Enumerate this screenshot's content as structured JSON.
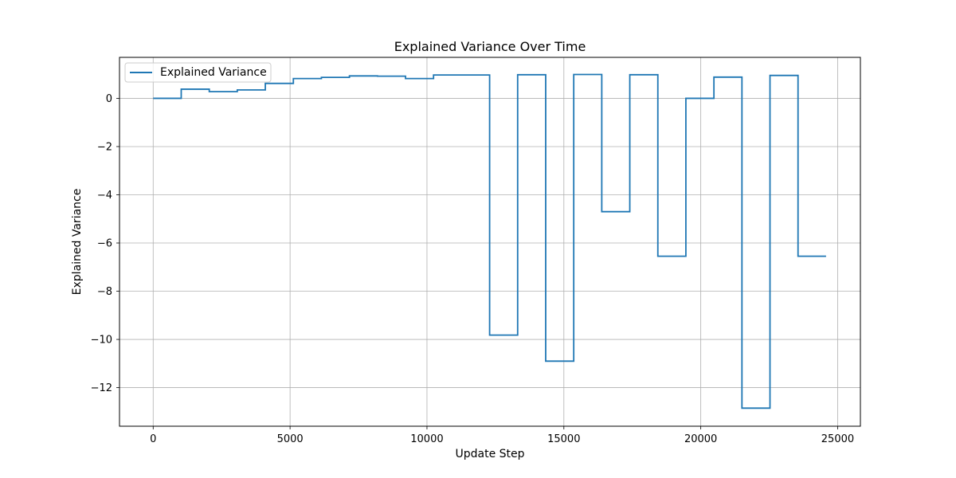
{
  "chart_data": {
    "type": "line",
    "title": "Explained Variance Over Time",
    "xlabel": "Update Step",
    "ylabel": "Explained Variance",
    "xlim": [
      -1230,
      25830
    ],
    "ylim": [
      -13.6,
      1.7
    ],
    "xticks": [
      0,
      5000,
      10000,
      15000,
      20000,
      25000
    ],
    "xtick_labels": [
      "0",
      "5000",
      "10000",
      "15000",
      "20000",
      "25000"
    ],
    "yticks": [
      0,
      -2,
      -4,
      -6,
      -8,
      -10,
      -12
    ],
    "ytick_labels": [
      "0",
      "−2",
      "−4",
      "−6",
      "−8",
      "−10",
      "−12"
    ],
    "grid": true,
    "legend_position": "top-left",
    "step_style": "post",
    "series": [
      {
        "name": "Explained Variance",
        "color": "#1f77b4",
        "x": [
          0,
          1024,
          2048,
          3072,
          4096,
          5120,
          6144,
          7168,
          8192,
          9216,
          10240,
          11264,
          12288,
          13312,
          14336,
          15360,
          16384,
          17408,
          18432,
          19456,
          20480,
          21504,
          22528,
          23552,
          24576
        ],
        "y": [
          0.0,
          0.38,
          0.28,
          0.35,
          0.62,
          0.82,
          0.87,
          0.93,
          0.92,
          0.82,
          0.97,
          0.97,
          -9.82,
          0.98,
          -10.9,
          0.99,
          -4.7,
          0.98,
          -6.55,
          0.0,
          0.88,
          -12.85,
          0.95,
          -6.55,
          -6.55
        ]
      }
    ]
  }
}
